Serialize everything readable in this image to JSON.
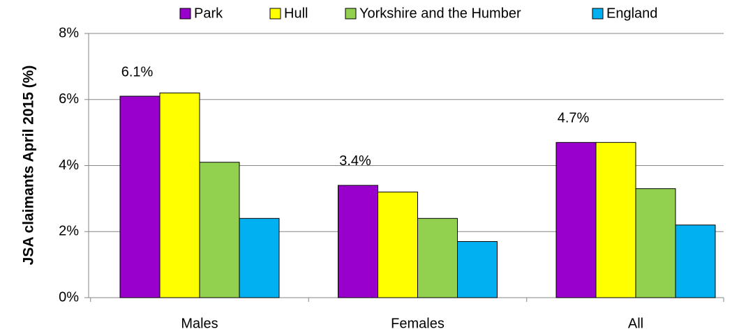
{
  "chart_data": {
    "type": "bar",
    "y_label": "JSA claimants  April 2015 (%)",
    "categories": [
      "Males",
      "Females",
      "All"
    ],
    "series": [
      {
        "name": "Park",
        "color": "#9900cc",
        "values": [
          6.1,
          3.4,
          4.7
        ],
        "value_labels": [
          "6.1%",
          "3.4%",
          "4.7%"
        ]
      },
      {
        "name": "Hull",
        "color": "#ffff00",
        "values": [
          6.2,
          3.2,
          4.7
        ]
      },
      {
        "name": "Yorkshire and the Humber",
        "color": "#92d050",
        "values": [
          4.1,
          2.4,
          3.3
        ]
      },
      {
        "name": "England",
        "color": "#00b0f0",
        "values": [
          2.4,
          1.7,
          2.2
        ]
      }
    ],
    "ylim": [
      0,
      8
    ],
    "yticks": [
      {
        "value": 0,
        "label": "0%"
      },
      {
        "value": 2,
        "label": "2%"
      },
      {
        "value": 4,
        "label": "4%"
      },
      {
        "value": 6,
        "label": "6%"
      },
      {
        "value": 8,
        "label": "8%"
      }
    ],
    "grid": true,
    "legend": "top"
  }
}
